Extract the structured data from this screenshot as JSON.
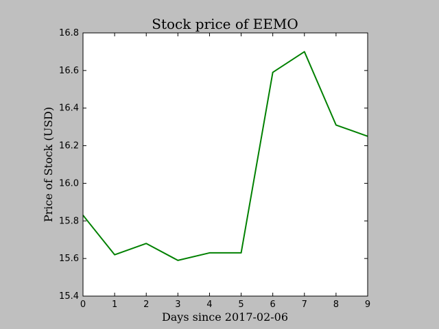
{
  "chart_data": {
    "type": "line",
    "title": "Stock price of EEMO",
    "xlabel": "Days since 2017-02-06",
    "ylabel": "Price of Stock (USD)",
    "xlim": [
      0,
      9
    ],
    "ylim": [
      15.4,
      16.8
    ],
    "x_ticks": [
      "0",
      "1",
      "2",
      "3",
      "4",
      "5",
      "6",
      "7",
      "8",
      "9"
    ],
    "y_ticks": [
      "15.4",
      "15.6",
      "15.8",
      "16.0",
      "16.2",
      "16.4",
      "16.6",
      "16.8"
    ],
    "grid": false,
    "series": [
      {
        "color": "#008000",
        "x": [
          0,
          1,
          2,
          3,
          4,
          5,
          6,
          7,
          8,
          9
        ],
        "values": [
          15.83,
          15.62,
          15.68,
          15.59,
          15.63,
          15.63,
          16.59,
          16.7,
          16.31,
          16.25
        ]
      }
    ]
  }
}
